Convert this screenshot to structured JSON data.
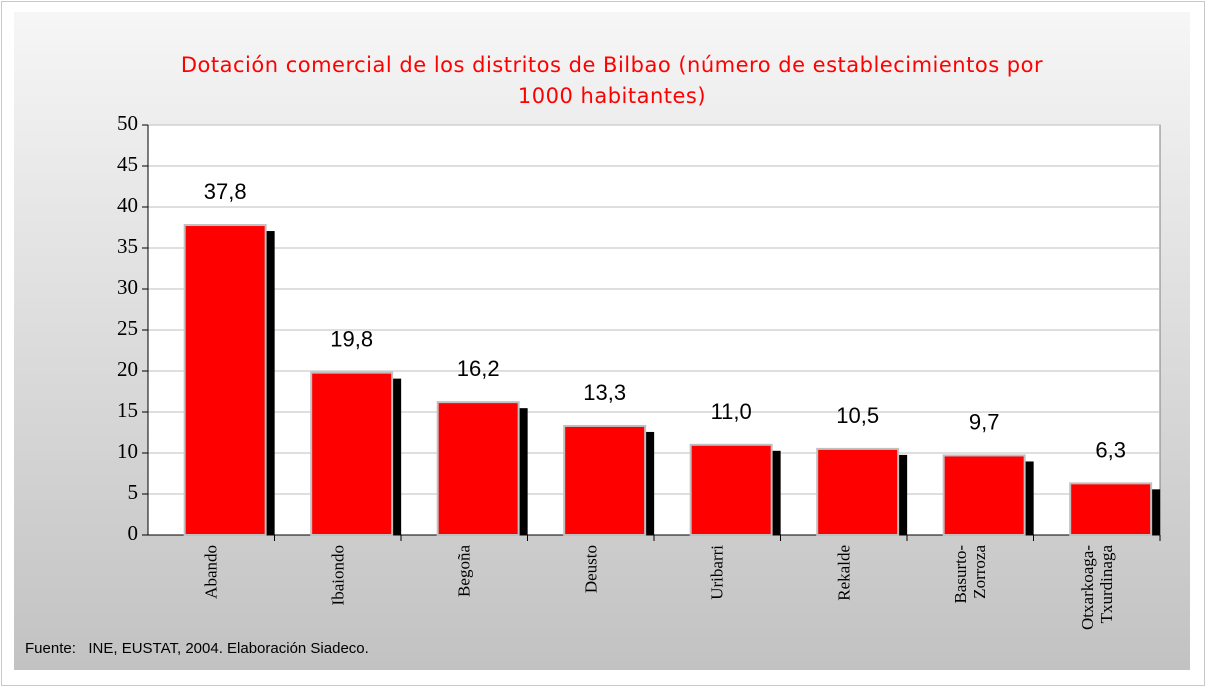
{
  "chart_data": {
    "type": "bar",
    "title": "Dotación comercial de los distritos de Bilbao (número de establecimientos por 1000 habitantes)",
    "categories": [
      "Abando",
      "Ibaiondo",
      "Begoña",
      "Deusto",
      "Uribarri",
      "Rekalde",
      "Basurto-\nZorroza",
      "Otxarkoaga-\nTxurdinaga"
    ],
    "values": [
      37.8,
      19.8,
      16.2,
      13.3,
      11.0,
      10.5,
      9.7,
      6.3
    ],
    "value_labels": [
      "37,8",
      "19,8",
      "16,2",
      "13,3",
      "11,0",
      "10,5",
      "9,7",
      "6,3"
    ],
    "color": "#ff0000",
    "ylim": [
      0,
      50
    ],
    "yticks": [
      0,
      5,
      10,
      15,
      20,
      25,
      30,
      35,
      40,
      45,
      50
    ],
    "grid": true,
    "source": "Fuente:   INE, EUSTAT, 2004. Elaboración Siadeco."
  }
}
